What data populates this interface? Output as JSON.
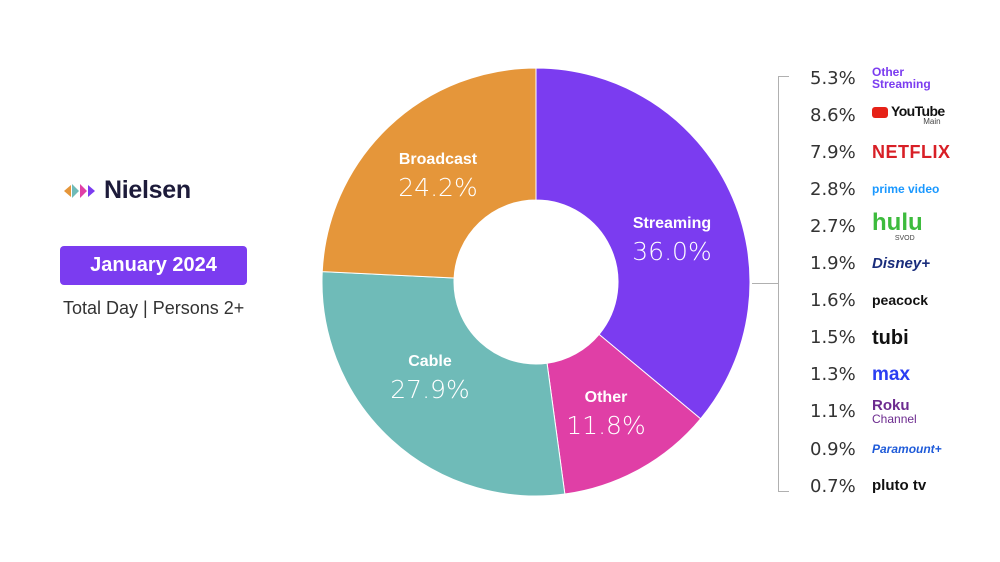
{
  "brand": {
    "name": "Nielsen"
  },
  "period": "January 2024",
  "subtitle": "Total Day | Persons 2+",
  "chart_data": {
    "type": "pie",
    "style": "donut",
    "slices": [
      {
        "label": "Streaming",
        "value": 36.0,
        "value_label": "36.0%",
        "color": "#7b3cf0"
      },
      {
        "label": "Other",
        "value": 11.8,
        "value_label": "11.8%",
        "color": "#e03fa6"
      },
      {
        "label": "Cable",
        "value": 27.9,
        "value_label": "27.9%",
        "color": "#6fbbb8"
      },
      {
        "label": "Broadcast",
        "value": 24.2,
        "value_label": "24.2%",
        "color": "#e5963a"
      }
    ],
    "streaming_breakdown": [
      {
        "value": 5.3,
        "value_label": "5.3%",
        "service": "Other Streaming",
        "service_lines": [
          "Other",
          "Streaming"
        ],
        "color": "#7b3cf0"
      },
      {
        "value": 8.6,
        "value_label": "8.6%",
        "service": "YouTube Main",
        "service_lines": [
          "YouTube",
          "Main"
        ],
        "color": "#e62117"
      },
      {
        "value": 7.9,
        "value_label": "7.9%",
        "service": "NETFLIX",
        "service_lines": [
          "NETFLIX"
        ],
        "color": "#d81f26"
      },
      {
        "value": 2.8,
        "value_label": "2.8%",
        "service": "prime video",
        "service_lines": [
          "prime video"
        ],
        "color": "#1a98ff"
      },
      {
        "value": 2.7,
        "value_label": "2.7%",
        "service": "hulu SVOD",
        "service_lines": [
          "hulu",
          "SVOD"
        ],
        "color": "#3dbb3d"
      },
      {
        "value": 1.9,
        "value_label": "1.9%",
        "service": "Disney+",
        "service_lines": [
          "Disney+"
        ],
        "color": "#1a2d7c"
      },
      {
        "value": 1.6,
        "value_label": "1.6%",
        "service": "peacock",
        "service_lines": [
          "peacock"
        ],
        "color": "#111111"
      },
      {
        "value": 1.5,
        "value_label": "1.5%",
        "service": "tubi",
        "service_lines": [
          "tubi"
        ],
        "color": "#111111"
      },
      {
        "value": 1.3,
        "value_label": "1.3%",
        "service": "max",
        "service_lines": [
          "max"
        ],
        "color": "#2a3ef2"
      },
      {
        "value": 1.1,
        "value_label": "1.1%",
        "service": "Roku Channel",
        "service_lines": [
          "Roku",
          "Channel"
        ],
        "color": "#6c2b8f"
      },
      {
        "value": 0.9,
        "value_label": "0.9%",
        "service": "Paramount+",
        "service_lines": [
          "Paramount+"
        ],
        "color": "#1f5bd9"
      },
      {
        "value": 0.7,
        "value_label": "0.7%",
        "service": "pluto tv",
        "service_lines": [
          "pluto tv"
        ],
        "color": "#111111"
      }
    ]
  }
}
